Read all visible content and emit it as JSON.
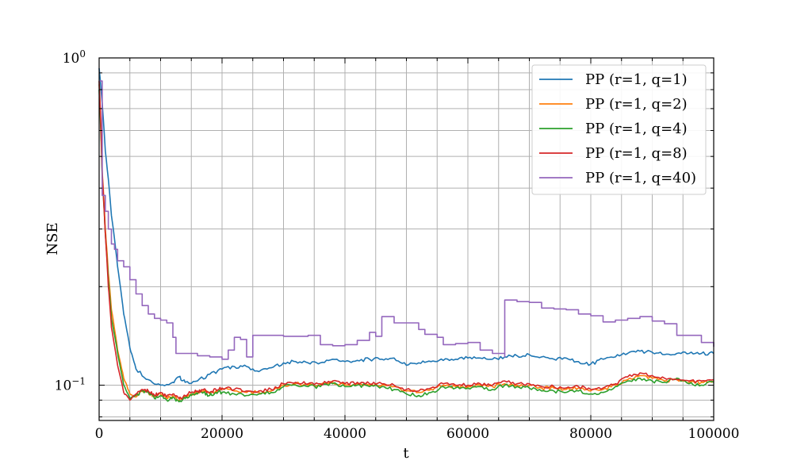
{
  "chart_data": {
    "type": "line",
    "title": "",
    "xlabel": "t",
    "ylabel": "NSE",
    "xlim": [
      0,
      100000
    ],
    "ylim": [
      0.078,
      1.0
    ],
    "yscale": "log",
    "grid": true,
    "legend_placement": "top-right",
    "x_ticks": [
      0,
      20000,
      40000,
      60000,
      80000,
      100000
    ],
    "x_tick_labels": [
      "0",
      "20000",
      "40000",
      "60000",
      "80000",
      "100000"
    ],
    "y_ticks": [
      {
        "value": 1.0,
        "base": "10",
        "exp": "0"
      },
      {
        "value": 0.1,
        "base": "10",
        "exp": "−1"
      }
    ],
    "series": [
      {
        "name": "PP (r=1, q=1)",
        "color": "#1f77b4",
        "x": [
          0,
          1000,
          2000,
          3000,
          4000,
          5000,
          6000,
          8000,
          10000,
          12000,
          13000,
          14000,
          16000,
          18000,
          20000,
          22000,
          24000,
          26000,
          28000,
          30000,
          32000,
          34000,
          36000,
          38000,
          40000,
          42000,
          44000,
          46000,
          48000,
          50000,
          52000,
          54000,
          56000,
          58000,
          60000,
          62000,
          64000,
          66000,
          68000,
          70000,
          72000,
          74000,
          76000,
          78000,
          80000,
          82000,
          84000,
          86000,
          88000,
          90000,
          92000,
          94000,
          96000,
          98000,
          100000
        ],
        "values": [
          0.93,
          0.52,
          0.33,
          0.23,
          0.165,
          0.13,
          0.112,
          0.104,
          0.1,
          0.102,
          0.106,
          0.102,
          0.103,
          0.108,
          0.112,
          0.114,
          0.114,
          0.11,
          0.113,
          0.117,
          0.118,
          0.117,
          0.117,
          0.12,
          0.118,
          0.119,
          0.12,
          0.12,
          0.121,
          0.115,
          0.117,
          0.118,
          0.119,
          0.12,
          0.121,
          0.121,
          0.12,
          0.122,
          0.123,
          0.124,
          0.122,
          0.12,
          0.121,
          0.118,
          0.116,
          0.12,
          0.122,
          0.125,
          0.127,
          0.126,
          0.124,
          0.125,
          0.125,
          0.125,
          0.125
        ]
      },
      {
        "name": "PP (r=1, q=2)",
        "color": "#ff7f0e",
        "x": [
          0,
          500,
          1000,
          1500,
          2000,
          3000,
          4000,
          5000,
          6000,
          7000,
          8000,
          9000,
          10000,
          11000,
          12000,
          13000,
          14000,
          15000,
          16000,
          17000,
          18000,
          19000,
          20000,
          22000,
          24000,
          26000,
          28000,
          30000,
          32000,
          34000,
          36000,
          38000,
          40000,
          42000,
          44000,
          46000,
          48000,
          50000,
          52000,
          54000,
          56000,
          58000,
          60000,
          62000,
          64000,
          66000,
          68000,
          70000,
          72000,
          74000,
          76000,
          78000,
          80000,
          82000,
          84000,
          86000,
          88000,
          90000,
          92000,
          94000,
          96000,
          98000,
          100000
        ],
        "values": [
          0.83,
          0.45,
          0.3,
          0.22,
          0.17,
          0.128,
          0.105,
          0.094,
          0.092,
          0.096,
          0.095,
          0.092,
          0.094,
          0.091,
          0.093,
          0.09,
          0.092,
          0.094,
          0.095,
          0.096,
          0.094,
          0.096,
          0.097,
          0.096,
          0.095,
          0.095,
          0.096,
          0.1,
          0.101,
          0.1,
          0.1,
          0.102,
          0.1,
          0.101,
          0.1,
          0.1,
          0.099,
          0.096,
          0.095,
          0.097,
          0.1,
          0.099,
          0.099,
          0.1,
          0.099,
          0.101,
          0.1,
          0.1,
          0.098,
          0.098,
          0.097,
          0.098,
          0.096,
          0.097,
          0.1,
          0.104,
          0.107,
          0.105,
          0.103,
          0.104,
          0.102,
          0.102,
          0.103
        ]
      },
      {
        "name": "PP (r=1, q=4)",
        "color": "#2ca02c",
        "x": [
          0,
          500,
          1000,
          1500,
          2000,
          3000,
          4000,
          5000,
          6000,
          7000,
          8000,
          9000,
          10000,
          11000,
          12000,
          13000,
          14000,
          15000,
          16000,
          17000,
          18000,
          19000,
          20000,
          22000,
          24000,
          26000,
          28000,
          30000,
          32000,
          34000,
          36000,
          38000,
          40000,
          42000,
          44000,
          46000,
          48000,
          50000,
          52000,
          54000,
          56000,
          58000,
          60000,
          62000,
          64000,
          66000,
          68000,
          70000,
          72000,
          74000,
          76000,
          78000,
          80000,
          82000,
          84000,
          86000,
          88000,
          90000,
          92000,
          94000,
          96000,
          98000,
          100000
        ],
        "values": [
          0.8,
          0.43,
          0.29,
          0.21,
          0.16,
          0.125,
          0.1,
          0.091,
          0.093,
          0.096,
          0.095,
          0.091,
          0.093,
          0.09,
          0.092,
          0.089,
          0.091,
          0.093,
          0.094,
          0.095,
          0.093,
          0.095,
          0.095,
          0.094,
          0.093,
          0.094,
          0.095,
          0.099,
          0.1,
          0.099,
          0.099,
          0.101,
          0.099,
          0.1,
          0.099,
          0.099,
          0.097,
          0.094,
          0.093,
          0.095,
          0.099,
          0.098,
          0.098,
          0.099,
          0.097,
          0.1,
          0.099,
          0.098,
          0.096,
          0.096,
          0.095,
          0.096,
          0.094,
          0.095,
          0.099,
          0.103,
          0.105,
          0.103,
          0.102,
          0.105,
          0.101,
          0.1,
          0.102
        ]
      },
      {
        "name": "PP (r=1, q=8)",
        "color": "#d62728",
        "x": [
          0,
          500,
          1000,
          1500,
          2000,
          3000,
          4000,
          5000,
          6000,
          7000,
          8000,
          9000,
          10000,
          11000,
          12000,
          13000,
          14000,
          15000,
          16000,
          17000,
          18000,
          19000,
          20000,
          22000,
          24000,
          26000,
          28000,
          30000,
          32000,
          34000,
          36000,
          38000,
          40000,
          42000,
          44000,
          46000,
          48000,
          50000,
          52000,
          54000,
          56000,
          58000,
          60000,
          62000,
          64000,
          66000,
          68000,
          70000,
          72000,
          74000,
          76000,
          78000,
          80000,
          82000,
          84000,
          86000,
          88000,
          90000,
          92000,
          94000,
          96000,
          98000,
          100000
        ],
        "values": [
          0.85,
          0.44,
          0.29,
          0.2,
          0.15,
          0.115,
          0.095,
          0.09,
          0.094,
          0.097,
          0.096,
          0.093,
          0.095,
          0.092,
          0.094,
          0.091,
          0.093,
          0.095,
          0.096,
          0.097,
          0.095,
          0.097,
          0.098,
          0.097,
          0.096,
          0.096,
          0.097,
          0.101,
          0.102,
          0.101,
          0.101,
          0.103,
          0.101,
          0.102,
          0.101,
          0.101,
          0.1,
          0.097,
          0.096,
          0.098,
          0.101,
          0.1,
          0.1,
          0.101,
          0.1,
          0.103,
          0.101,
          0.101,
          0.099,
          0.099,
          0.098,
          0.099,
          0.097,
          0.098,
          0.101,
          0.106,
          0.109,
          0.107,
          0.105,
          0.104,
          0.103,
          0.103,
          0.104
        ]
      },
      {
        "name": "PP (r=1, q=40)",
        "color": "#9467bd",
        "x": [
          0,
          500,
          1000,
          1500,
          2000,
          2500,
          3000,
          4000,
          5000,
          6000,
          7000,
          8000,
          9000,
          10000,
          11000,
          12000,
          12500,
          14000,
          16000,
          18000,
          20000,
          21000,
          22000,
          23000,
          24000,
          25000,
          28000,
          30000,
          34000,
          36000,
          38000,
          40000,
          42000,
          44000,
          45000,
          46000,
          48000,
          50000,
          52000,
          53000,
          55000,
          56000,
          58000,
          60000,
          62000,
          64000,
          66000,
          66001,
          68000,
          70000,
          72000,
          74000,
          76000,
          78000,
          80000,
          82000,
          84000,
          86000,
          88000,
          90000,
          92000,
          94000,
          96000,
          98000,
          100000
        ],
        "values": [
          0.85,
          0.38,
          0.34,
          0.3,
          0.27,
          0.26,
          0.24,
          0.23,
          0.21,
          0.19,
          0.175,
          0.165,
          0.16,
          0.158,
          0.155,
          0.14,
          0.125,
          0.125,
          0.123,
          0.122,
          0.12,
          0.128,
          0.14,
          0.138,
          0.122,
          0.142,
          0.142,
          0.141,
          0.142,
          0.133,
          0.132,
          0.133,
          0.137,
          0.145,
          0.141,
          0.162,
          0.155,
          0.155,
          0.148,
          0.143,
          0.14,
          0.133,
          0.134,
          0.135,
          0.128,
          0.125,
          0.122,
          0.182,
          0.18,
          0.179,
          0.172,
          0.171,
          0.17,
          0.165,
          0.163,
          0.156,
          0.158,
          0.16,
          0.162,
          0.157,
          0.154,
          0.142,
          0.142,
          0.135,
          0.131
        ]
      }
    ]
  }
}
